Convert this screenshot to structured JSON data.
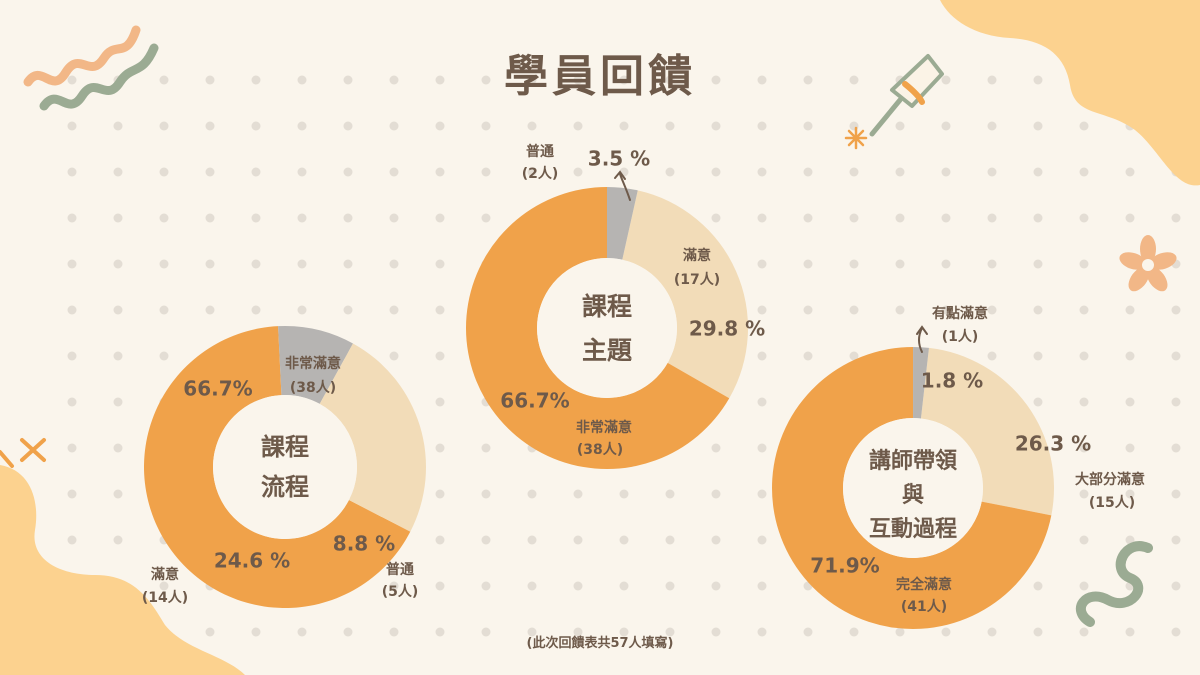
{
  "title": "學員回饋",
  "footnote": "(此次回饋表共57人填寫)",
  "colors": {
    "very_satisfied": "#f0a24a",
    "satisfied": "#f2dcb8",
    "normal": "#b6b4b2",
    "text": "#6e5a4a",
    "background": "#faf5ec",
    "dots": "#e3ddd4"
  },
  "chart_data": [
    {
      "type": "pie",
      "center_label": [
        "課程",
        "流程"
      ],
      "slices": [
        {
          "name": "非常滿意",
          "count": "(38人)",
          "value": 66.7,
          "percent_label": "66.7%",
          "color": "#f0a24a"
        },
        {
          "name": "普通",
          "count": "(5人)",
          "value": 8.8,
          "percent_label": "8.8 %",
          "color": "#b6b4b2"
        },
        {
          "name": "滿意",
          "count": "(14人)",
          "value": 24.6,
          "percent_label": "24.6 %",
          "color": "#f2dcb8"
        }
      ]
    },
    {
      "type": "pie",
      "center_label": [
        "課程",
        "主題"
      ],
      "slices": [
        {
          "name": "滿意",
          "count": "(17人)",
          "value": 29.8,
          "percent_label": "29.8 %",
          "color": "#f2dcb8"
        },
        {
          "name": "非常滿意",
          "count": "(38人)",
          "value": 66.7,
          "percent_label": "66.7%",
          "color": "#f0a24a"
        },
        {
          "name": "普通",
          "count": "(2人)",
          "value": 3.5,
          "percent_label": "3.5 %",
          "color": "#b6b4b2"
        }
      ]
    },
    {
      "type": "pie",
      "center_label": [
        "講師帶領",
        "與",
        "互動過程"
      ],
      "slices": [
        {
          "name": "大部分滿意",
          "count": "(15人)",
          "value": 26.3,
          "percent_label": "26.3 %",
          "color": "#f2dcb8"
        },
        {
          "name": "完全滿意",
          "count": "(41人)",
          "value": 71.9,
          "percent_label": "71.9%",
          "color": "#f0a24a"
        },
        {
          "name": "有點滿意",
          "count": "(1人)",
          "value": 1.8,
          "percent_label": "1.8 %",
          "color": "#b6b4b2"
        }
      ]
    }
  ]
}
